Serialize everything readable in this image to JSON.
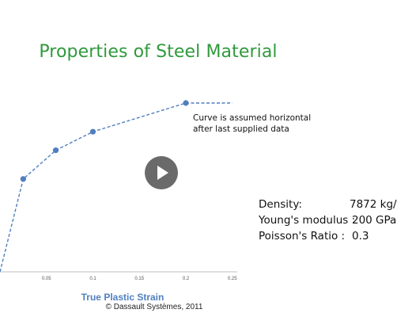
{
  "slide": {
    "title": "Properties of Steel Material",
    "copyright": "© Dassault Systèmes, 2011"
  },
  "properties": [
    {
      "label": "Density:",
      "value": "7872 kg/"
    },
    {
      "label": "Young's modulus :",
      "value": "200 GPa"
    },
    {
      "label": "Poisson's Ratio :",
      "value": "0.3"
    }
  ],
  "player": {
    "icon": "play-icon"
  },
  "chart_data": {
    "type": "line",
    "title": "",
    "xlabel": "True Plastic Strain",
    "ylabel": "",
    "xlim": [
      0,
      0.25
    ],
    "x_ticks": [
      "0.05",
      "0.1",
      "0.15",
      "0.2",
      "0.25"
    ],
    "series": [
      {
        "points": [
          {
            "x": 0,
            "y": 0.0
          },
          {
            "x": 0.025,
            "y": 0.55
          },
          {
            "x": 0.06,
            "y": 0.72
          },
          {
            "x": 0.1,
            "y": 0.83
          },
          {
            "x": 0.2,
            "y": 1.0
          }
        ],
        "extension": {
          "x": 0.25,
          "y": 1.0
        }
      }
    ],
    "annotation": "Curve is assumed horizontal after last supplied data",
    "colors": {
      "line": "#4f7fbf",
      "axis_label": "#4f7fbf"
    }
  }
}
